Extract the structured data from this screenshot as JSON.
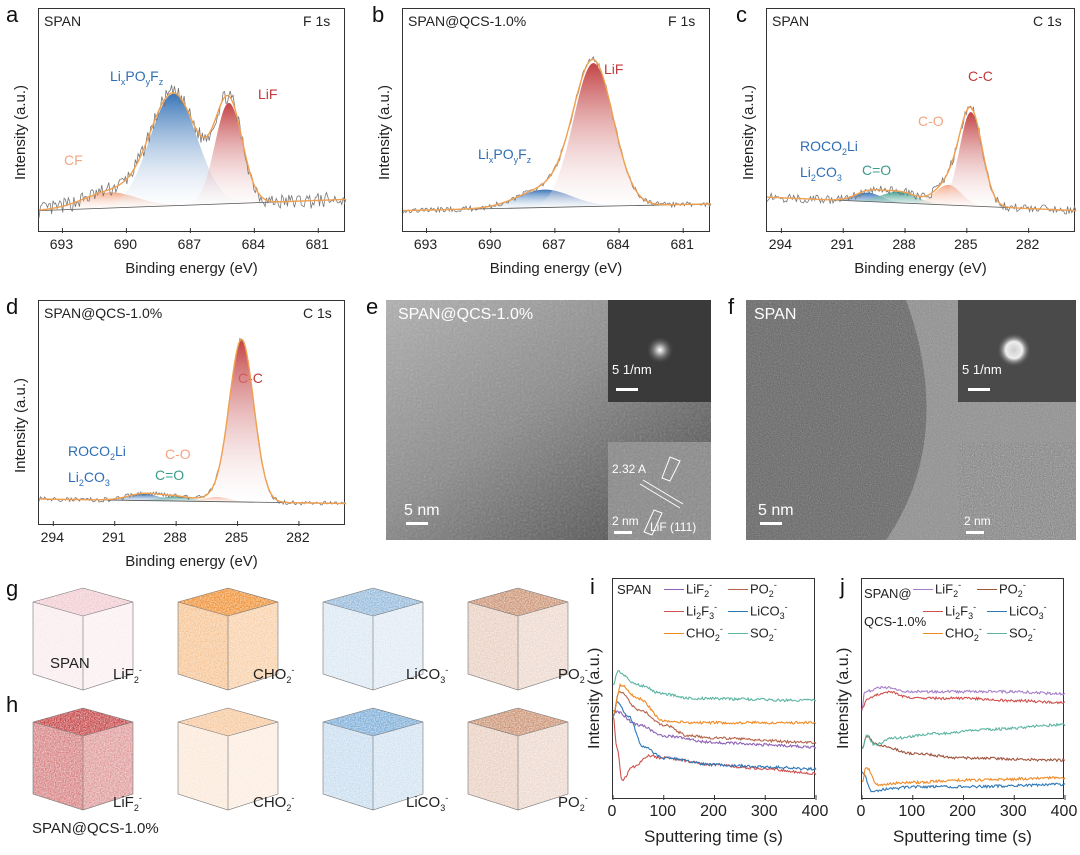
{
  "panels": {
    "a": "a",
    "b": "b",
    "c": "c",
    "d": "d",
    "e": "e",
    "f": "f",
    "g": "g",
    "h": "h",
    "i": "i",
    "j": "j"
  },
  "xps_common": {
    "ylabel": "Intensity (a.u.)",
    "xlabel": "Binding energy (eV)"
  },
  "chart_data": [
    {
      "id": "a",
      "type": "line",
      "title": "SPAN",
      "core_level": "F 1s",
      "xlabel": "Binding energy (eV)",
      "ylabel": "Intensity (a.u.)",
      "xlim": [
        694.1,
        679.7
      ],
      "ticks": [
        "693",
        "690",
        "687",
        "684",
        "681"
      ],
      "background": [
        0.0,
        0.05
      ],
      "noise": 0.035,
      "peaks": [
        {
          "name": "CF",
          "center": 690.8,
          "height": 0.07,
          "fwhm": 3.0,
          "color": "#f4a582"
        },
        {
          "name": "Li_xPO_yF_z",
          "center": 687.8,
          "height": 0.5,
          "fwhm": 2.6,
          "color": "#2f6eb5"
        },
        {
          "name": "LiF",
          "center": 685.2,
          "height": 0.45,
          "fwhm": 1.5,
          "color": "#c0393b"
        }
      ]
    },
    {
      "id": "b",
      "type": "line",
      "title": "SPAN@QCS-1.0%",
      "core_level": "F 1s",
      "xlabel": "Binding energy (eV)",
      "ylabel": "Intensity (a.u.)",
      "xlim": [
        694.1,
        679.7
      ],
      "ticks": [
        "693",
        "690",
        "687",
        "684",
        "681"
      ],
      "background": [
        0.0,
        0.03
      ],
      "noise": 0.012,
      "peaks": [
        {
          "name": "Li_xPO_yF_z",
          "center": 687.5,
          "height": 0.08,
          "fwhm": 3.0,
          "color": "#2f6eb5"
        },
        {
          "name": "LiF",
          "center": 685.2,
          "height": 0.64,
          "fwhm": 2.2,
          "color": "#c0393b"
        }
      ]
    },
    {
      "id": "c",
      "type": "line",
      "title": "SPAN",
      "core_level": "C 1s",
      "xlabel": "Binding energy (eV)",
      "ylabel": "Intensity (a.u.)",
      "xlim": [
        294.7,
        279.7
      ],
      "ticks": [
        "294",
        "291",
        "288",
        "285",
        "282"
      ],
      "background": [
        0.06,
        0.0
      ],
      "noise": 0.02,
      "peaks": [
        {
          "name": "ROCO_2Li / Li_2CO_3",
          "center": 289.8,
          "height": 0.04,
          "fwhm": 1.5,
          "color": "#2f6eb5"
        },
        {
          "name": "C=O",
          "center": 288.3,
          "height": 0.05,
          "fwhm": 2.0,
          "color": "#3c9c8c"
        },
        {
          "name": "C-O",
          "center": 285.9,
          "height": 0.09,
          "fwhm": 1.5,
          "color": "#f4a582"
        },
        {
          "name": "C-C",
          "center": 284.8,
          "height": 0.42,
          "fwhm": 1.3,
          "color": "#c0393b"
        }
      ]
    },
    {
      "id": "d",
      "type": "line",
      "title": "SPAN@QCS-1.0%",
      "core_level": "C 1s",
      "xlabel": "Binding energy (eV)",
      "ylabel": "Intensity (a.u.)",
      "xlim": [
        294.7,
        279.7
      ],
      "ticks": [
        "294",
        "291",
        "288",
        "285",
        "282"
      ],
      "background": [
        0.02,
        0.0
      ],
      "noise": 0.01,
      "peaks": [
        {
          "name": "ROCO_2Li / Li_2CO_3",
          "center": 289.6,
          "height": 0.03,
          "fwhm": 1.8,
          "color": "#2f6eb5"
        },
        {
          "name": "C=O",
          "center": 288.0,
          "height": 0.02,
          "fwhm": 1.8,
          "color": "#3c9c8c"
        },
        {
          "name": "C-O",
          "center": 286.0,
          "height": 0.02,
          "fwhm": 1.5,
          "color": "#f4a582"
        },
        {
          "name": "C-C",
          "center": 284.8,
          "height": 0.72,
          "fwhm": 1.4,
          "color": "#c0393b"
        }
      ]
    },
    {
      "id": "i",
      "type": "line",
      "title": "SPAN",
      "xlabel": "Sputtering time (s)",
      "ylabel": "Intensity (a.u.)",
      "xlim": [
        0,
        400
      ],
      "ylim": [
        0,
        1
      ],
      "ticks": [
        "0",
        "100",
        "200",
        "300",
        "400"
      ],
      "series": [
        {
          "name": "LiF_2^-",
          "color": "#8e63b5",
          "t": [
            0,
            5,
            50,
            100,
            200,
            300,
            400
          ],
          "v": [
            0.41,
            0.4,
            0.34,
            0.29,
            0.26,
            0.25,
            0.24
          ]
        },
        {
          "name": "PO_2^-",
          "color": "#b5654a",
          "t": [
            0,
            12,
            50,
            100,
            150,
            200,
            400
          ],
          "v": [
            0.38,
            0.49,
            0.41,
            0.34,
            0.29,
            0.28,
            0.26
          ]
        },
        {
          "name": "Li_2F_3^-",
          "color": "#d0504e",
          "t": [
            0,
            8,
            18,
            40,
            70,
            100,
            200,
            300,
            400
          ],
          "v": [
            0.38,
            0.23,
            0.09,
            0.15,
            0.2,
            0.19,
            0.16,
            0.14,
            0.12
          ]
        },
        {
          "name": "LiCO_3^-",
          "color": "#2f78b8",
          "t": [
            0,
            8,
            30,
            60,
            100,
            200,
            300,
            400
          ],
          "v": [
            0.38,
            0.44,
            0.38,
            0.24,
            0.19,
            0.16,
            0.15,
            0.14
          ]
        },
        {
          "name": "CHO_2^-",
          "color": "#f08a24",
          "t": [
            0,
            15,
            50,
            100,
            150,
            400
          ],
          "v": [
            0.38,
            0.52,
            0.46,
            0.36,
            0.35,
            0.35
          ]
        },
        {
          "name": "SO_2^-",
          "color": "#5bb5a2",
          "t": [
            0,
            10,
            50,
            100,
            150,
            400
          ],
          "v": [
            0.52,
            0.58,
            0.52,
            0.48,
            0.46,
            0.45
          ]
        }
      ]
    },
    {
      "id": "j",
      "type": "line",
      "title": "SPAN@ QCS-1.0%",
      "xlabel": "Sputtering time (s)",
      "ylabel": "Intensity (a.u.)",
      "xlim": [
        0,
        400
      ],
      "ylim": [
        0,
        1
      ],
      "ticks": [
        "0",
        "100",
        "200",
        "300",
        "400"
      ],
      "series": [
        {
          "name": "LiF_2^-",
          "color": "#a77fc9",
          "t": [
            0,
            5,
            40,
            100,
            200,
            300,
            400
          ],
          "v": [
            0.41,
            0.49,
            0.51,
            0.49,
            0.49,
            0.49,
            0.48
          ]
        },
        {
          "name": "PO_2^-",
          "color": "#a0553d",
          "t": [
            0,
            10,
            30,
            100,
            200,
            400
          ],
          "v": [
            0.23,
            0.29,
            0.25,
            0.21,
            0.19,
            0.18
          ]
        },
        {
          "name": "Li_2F_3^-",
          "color": "#d0504e",
          "t": [
            0,
            10,
            50,
            100,
            200,
            300,
            400
          ],
          "v": [
            0.41,
            0.46,
            0.49,
            0.46,
            0.46,
            0.45,
            0.44
          ]
        },
        {
          "name": "LiCO_3^-",
          "color": "#2f78b8",
          "t": [
            0,
            20,
            50,
            100,
            200,
            400
          ],
          "v": [
            0.13,
            0.04,
            0.05,
            0.06,
            0.06,
            0.07
          ]
        },
        {
          "name": "CHO_2^-",
          "color": "#f08a24",
          "t": [
            0,
            8,
            30,
            100,
            200,
            400
          ],
          "v": [
            0.08,
            0.15,
            0.07,
            0.08,
            0.09,
            0.1
          ]
        },
        {
          "name": "SO_2^-",
          "color": "#5bb5a2",
          "t": [
            0,
            10,
            25,
            60,
            150,
            250,
            400
          ],
          "v": [
            0.23,
            0.29,
            0.25,
            0.28,
            0.3,
            0.32,
            0.34
          ]
        }
      ]
    }
  ],
  "tem": {
    "e": {
      "sample": "SPAN@QCS-1.0%",
      "scale_main": "5 nm",
      "scale_fft": "5 1/nm",
      "scale_inset": "2 nm",
      "d_spacing": "2.32 A",
      "plane": "LiF (111)"
    },
    "f": {
      "sample": "SPAN",
      "scale_main": "5 nm",
      "scale_fft": "5 1/nm",
      "scale_inset": "2 nm"
    }
  },
  "tof_3d": {
    "g": {
      "sample": "SPAN",
      "cubes": [
        {
          "label": "LiF_2^-",
          "color": "#e6a3ad",
          "density": 0.25
        },
        {
          "label": "CHO_2^-",
          "color": "#ee8a2a",
          "density": 0.7
        },
        {
          "label": "LiCO_3^-",
          "color": "#2f78b8",
          "density": 0.2
        },
        {
          "label": "PO_2^-",
          "color": "#b5653a",
          "density": 0.4
        }
      ]
    },
    "h": {
      "sample": "SPAN@QCS-1.0%",
      "cubes": [
        {
          "label": "LiF_2^-",
          "color": "#c0393b",
          "density": 0.9
        },
        {
          "label": "CHO_2^-",
          "color": "#f0a460",
          "density": 0.3
        },
        {
          "label": "LiCO_3^-",
          "color": "#3a85c5",
          "density": 0.35
        },
        {
          "label": "PO_2^-",
          "color": "#b5653a",
          "density": 0.4
        }
      ]
    }
  }
}
